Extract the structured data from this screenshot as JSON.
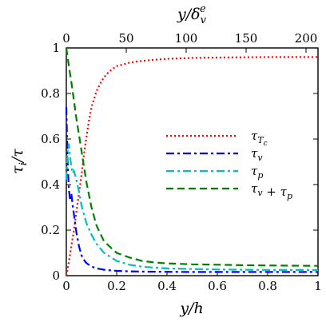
{
  "chart_data": {
    "type": "line",
    "xlabel": "y/h",
    "ylabel": "τ_i/τ",
    "top_xlabel": "y/δ_v^e",
    "xlim": [
      0,
      1
    ],
    "ylim": [
      0,
      1
    ],
    "top_xlim": [
      0,
      210
    ],
    "x_ticks": [
      "0",
      "0.2",
      "0.4",
      "0.6",
      "0.8",
      "1"
    ],
    "y_ticks": [
      "0",
      "0.2",
      "0.4",
      "0.6",
      "0.8",
      "1"
    ],
    "top_x_ticks": [
      "0",
      "50",
      "100",
      "150",
      "200"
    ],
    "grid": false,
    "legend_position": "center-right",
    "series": [
      {
        "name": "τ_{T_c}",
        "color": "#ff0000",
        "style": "dotted",
        "x": [
          0,
          0.01,
          0.02,
          0.03,
          0.04,
          0.05,
          0.06,
          0.07,
          0.08,
          0.09,
          0.1,
          0.12,
          0.14,
          0.16,
          0.18,
          0.2,
          0.25,
          0.3,
          0.35,
          0.4,
          0.5,
          0.6,
          0.7,
          0.8,
          0.9,
          1.0
        ],
        "y": [
          0,
          0.06,
          0.13,
          0.2,
          0.28,
          0.36,
          0.44,
          0.53,
          0.61,
          0.68,
          0.74,
          0.81,
          0.855,
          0.885,
          0.905,
          0.92,
          0.935,
          0.943,
          0.948,
          0.952,
          0.956,
          0.958,
          0.959,
          0.96,
          0.96,
          0.96
        ]
      },
      {
        "name": "τ_v",
        "color": "#0000ff",
        "style": "dashdot",
        "x": [
          0,
          0.005,
          0.01,
          0.015,
          0.02,
          0.025,
          0.03,
          0.04,
          0.05,
          0.06,
          0.07,
          0.08,
          0.1,
          0.12,
          0.15,
          0.2,
          0.25,
          0.3,
          0.4,
          0.5,
          0.6,
          0.7,
          0.8,
          0.9,
          1.0
        ],
        "y": [
          0.74,
          0.5,
          0.38,
          0.33,
          0.36,
          0.31,
          0.27,
          0.19,
          0.13,
          0.09,
          0.07,
          0.055,
          0.04,
          0.032,
          0.026,
          0.021,
          0.019,
          0.018,
          0.017,
          0.016,
          0.016,
          0.016,
          0.016,
          0.016,
          0.016
        ]
      },
      {
        "name": "τ_p",
        "color": "#00bfbf",
        "style": "dashdot",
        "x": [
          0,
          0.005,
          0.01,
          0.015,
          0.02,
          0.025,
          0.03,
          0.04,
          0.05,
          0.06,
          0.07,
          0.08,
          0.1,
          0.12,
          0.15,
          0.2,
          0.25,
          0.3,
          0.35,
          0.4,
          0.5,
          0.6,
          0.7,
          0.8,
          0.9,
          1.0
        ],
        "y": [
          0.42,
          0.55,
          0.58,
          0.52,
          0.48,
          0.45,
          0.46,
          0.42,
          0.37,
          0.31,
          0.27,
          0.23,
          0.18,
          0.14,
          0.1,
          0.065,
          0.048,
          0.04,
          0.035,
          0.032,
          0.029,
          0.027,
          0.026,
          0.025,
          0.025,
          0.025
        ]
      },
      {
        "name": "τ_v + τ_p",
        "color": "#008000",
        "style": "dashed",
        "x": [
          0,
          0.005,
          0.01,
          0.02,
          0.03,
          0.04,
          0.05,
          0.06,
          0.07,
          0.08,
          0.1,
          0.12,
          0.15,
          0.2,
          0.25,
          0.3,
          0.35,
          0.4,
          0.5,
          0.6,
          0.7,
          0.8,
          0.9,
          1.0
        ],
        "y": [
          1.0,
          0.96,
          0.92,
          0.85,
          0.77,
          0.69,
          0.62,
          0.55,
          0.48,
          0.41,
          0.3,
          0.22,
          0.15,
          0.1,
          0.08,
          0.065,
          0.058,
          0.054,
          0.05,
          0.048,
          0.046,
          0.045,
          0.044,
          0.043
        ]
      }
    ]
  }
}
